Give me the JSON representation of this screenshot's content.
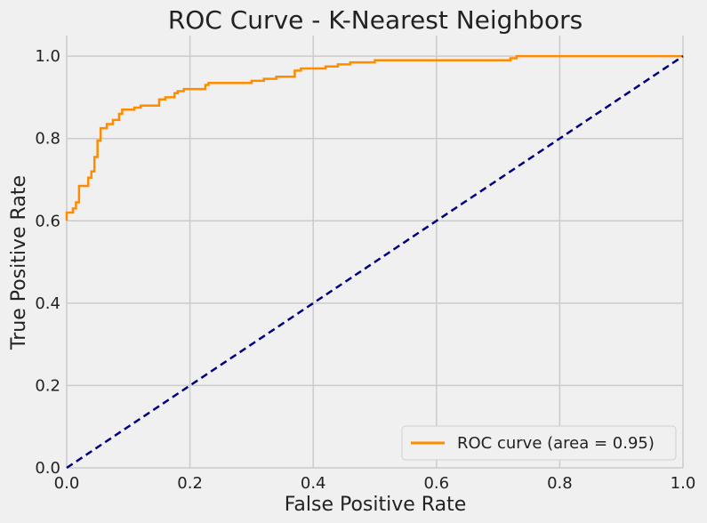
{
  "colors": {
    "background": "#f0f0f0",
    "grid": "#cbcbcb",
    "roc": "#ff8c00",
    "diagonal": "#000080",
    "legend_border": "#cfcfcf",
    "text": "#222222"
  },
  "chart_data": {
    "type": "line",
    "title": "ROC Curve - K-Nearest Neighbors",
    "xlabel": "False Positive Rate",
    "ylabel": "True Positive Rate",
    "xlim": [
      0.0,
      1.0
    ],
    "ylim": [
      0.0,
      1.05
    ],
    "xticks": [
      "0.0",
      "0.2",
      "0.4",
      "0.6",
      "0.8",
      "1.0"
    ],
    "yticks": [
      "0.0",
      "0.2",
      "0.4",
      "0.6",
      "0.8",
      "1.0"
    ],
    "grid": true,
    "legend_position": "lower-right",
    "series": [
      {
        "name": "ROC curve (area = 0.95)",
        "style": "solid",
        "color": "#ff8c00",
        "x": [
          0.0,
          0.0,
          0.01,
          0.01,
          0.015,
          0.015,
          0.02,
          0.02,
          0.025,
          0.025,
          0.035,
          0.035,
          0.04,
          0.04,
          0.045,
          0.045,
          0.05,
          0.05,
          0.055,
          0.055,
          0.06,
          0.06,
          0.065,
          0.065,
          0.075,
          0.075,
          0.085,
          0.085,
          0.09,
          0.09,
          0.1,
          0.1,
          0.11,
          0.11,
          0.12,
          0.12,
          0.13,
          0.13,
          0.15,
          0.15,
          0.16,
          0.16,
          0.175,
          0.175,
          0.18,
          0.18,
          0.19,
          0.19,
          0.225,
          0.225,
          0.23,
          0.23,
          0.3,
          0.3,
          0.32,
          0.32,
          0.34,
          0.34,
          0.37,
          0.37,
          0.38,
          0.38,
          0.42,
          0.42,
          0.44,
          0.44,
          0.46,
          0.46,
          0.5,
          0.5,
          0.72,
          0.72,
          0.73,
          0.73,
          1.0
        ],
        "y": [
          0.6,
          0.62,
          0.62,
          0.63,
          0.63,
          0.645,
          0.645,
          0.685,
          0.685,
          0.685,
          0.685,
          0.705,
          0.705,
          0.72,
          0.72,
          0.755,
          0.755,
          0.795,
          0.795,
          0.825,
          0.825,
          0.825,
          0.825,
          0.835,
          0.835,
          0.845,
          0.845,
          0.86,
          0.86,
          0.87,
          0.87,
          0.87,
          0.87,
          0.875,
          0.875,
          0.88,
          0.88,
          0.88,
          0.88,
          0.895,
          0.895,
          0.9,
          0.9,
          0.91,
          0.91,
          0.915,
          0.915,
          0.92,
          0.92,
          0.93,
          0.93,
          0.935,
          0.935,
          0.94,
          0.94,
          0.945,
          0.945,
          0.95,
          0.95,
          0.965,
          0.965,
          0.97,
          0.97,
          0.975,
          0.975,
          0.98,
          0.98,
          0.985,
          0.985,
          0.99,
          0.99,
          0.995,
          0.995,
          1.0,
          1.0
        ]
      },
      {
        "name": "",
        "style": "dashed",
        "color": "#000080",
        "x": [
          0.0,
          1.0
        ],
        "y": [
          0.0,
          1.0
        ]
      }
    ]
  }
}
